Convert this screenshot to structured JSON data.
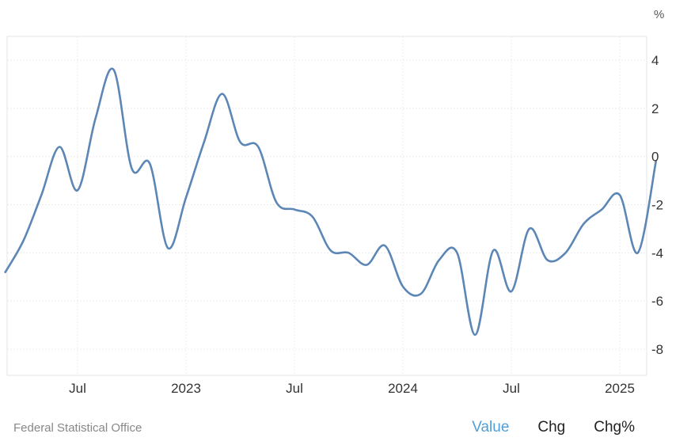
{
  "chart_data": {
    "type": "line",
    "unit": "%",
    "ylim": [
      -9,
      5
    ],
    "y_ticks": [
      4,
      2,
      0,
      -2,
      -4,
      -6,
      -8
    ],
    "x_ticks": [
      {
        "label": "Jul",
        "date": "2022-07"
      },
      {
        "label": "2023",
        "date": "2023-01"
      },
      {
        "label": "Jul",
        "date": "2023-07"
      },
      {
        "label": "2024",
        "date": "2024-01"
      },
      {
        "label": "Jul",
        "date": "2024-07"
      },
      {
        "label": "2025",
        "date": "2025-01"
      }
    ],
    "grid": true,
    "series": [
      {
        "color": "#5b86b5",
        "points": [
          {
            "x": "2022-03",
            "y": -4.8
          },
          {
            "x": "2022-04",
            "y": -3.5
          },
          {
            "x": "2022-05",
            "y": -1.6
          },
          {
            "x": "2022-06",
            "y": 0.4
          },
          {
            "x": "2022-07",
            "y": -1.4
          },
          {
            "x": "2022-08",
            "y": 1.6
          },
          {
            "x": "2022-09",
            "y": 3.6
          },
          {
            "x": "2022-10",
            "y": -0.5
          },
          {
            "x": "2022-11",
            "y": -0.3
          },
          {
            "x": "2022-12",
            "y": -3.8
          },
          {
            "x": "2023-01",
            "y": -1.7
          },
          {
            "x": "2023-02",
            "y": 0.6
          },
          {
            "x": "2023-03",
            "y": 2.6
          },
          {
            "x": "2023-04",
            "y": 0.6
          },
          {
            "x": "2023-05",
            "y": 0.4
          },
          {
            "x": "2023-06",
            "y": -1.9
          },
          {
            "x": "2023-07",
            "y": -2.2
          },
          {
            "x": "2023-08",
            "y": -2.5
          },
          {
            "x": "2023-09",
            "y": -3.9
          },
          {
            "x": "2023-10",
            "y": -4.0
          },
          {
            "x": "2023-11",
            "y": -4.5
          },
          {
            "x": "2023-12",
            "y": -3.7
          },
          {
            "x": "2024-01",
            "y": -5.4
          },
          {
            "x": "2024-02",
            "y": -5.7
          },
          {
            "x": "2024-03",
            "y": -4.3
          },
          {
            "x": "2024-04",
            "y": -4.0
          },
          {
            "x": "2024-05",
            "y": -7.4
          },
          {
            "x": "2024-06",
            "y": -3.9
          },
          {
            "x": "2024-07",
            "y": -5.6
          },
          {
            "x": "2024-08",
            "y": -3.0
          },
          {
            "x": "2024-09",
            "y": -4.3
          },
          {
            "x": "2024-10",
            "y": -4.0
          },
          {
            "x": "2024-11",
            "y": -2.8
          },
          {
            "x": "2024-12",
            "y": -2.2
          },
          {
            "x": "2025-01",
            "y": -1.6
          },
          {
            "x": "2025-02",
            "y": -4.0
          },
          {
            "x": "2025-03",
            "y": -0.2
          }
        ]
      }
    ]
  },
  "footer": {
    "source": "Federal Statistical Office",
    "tabs": [
      {
        "label": "Value",
        "active": true
      },
      {
        "label": "Chg",
        "active": false
      },
      {
        "label": "Chg%",
        "active": false
      }
    ]
  }
}
